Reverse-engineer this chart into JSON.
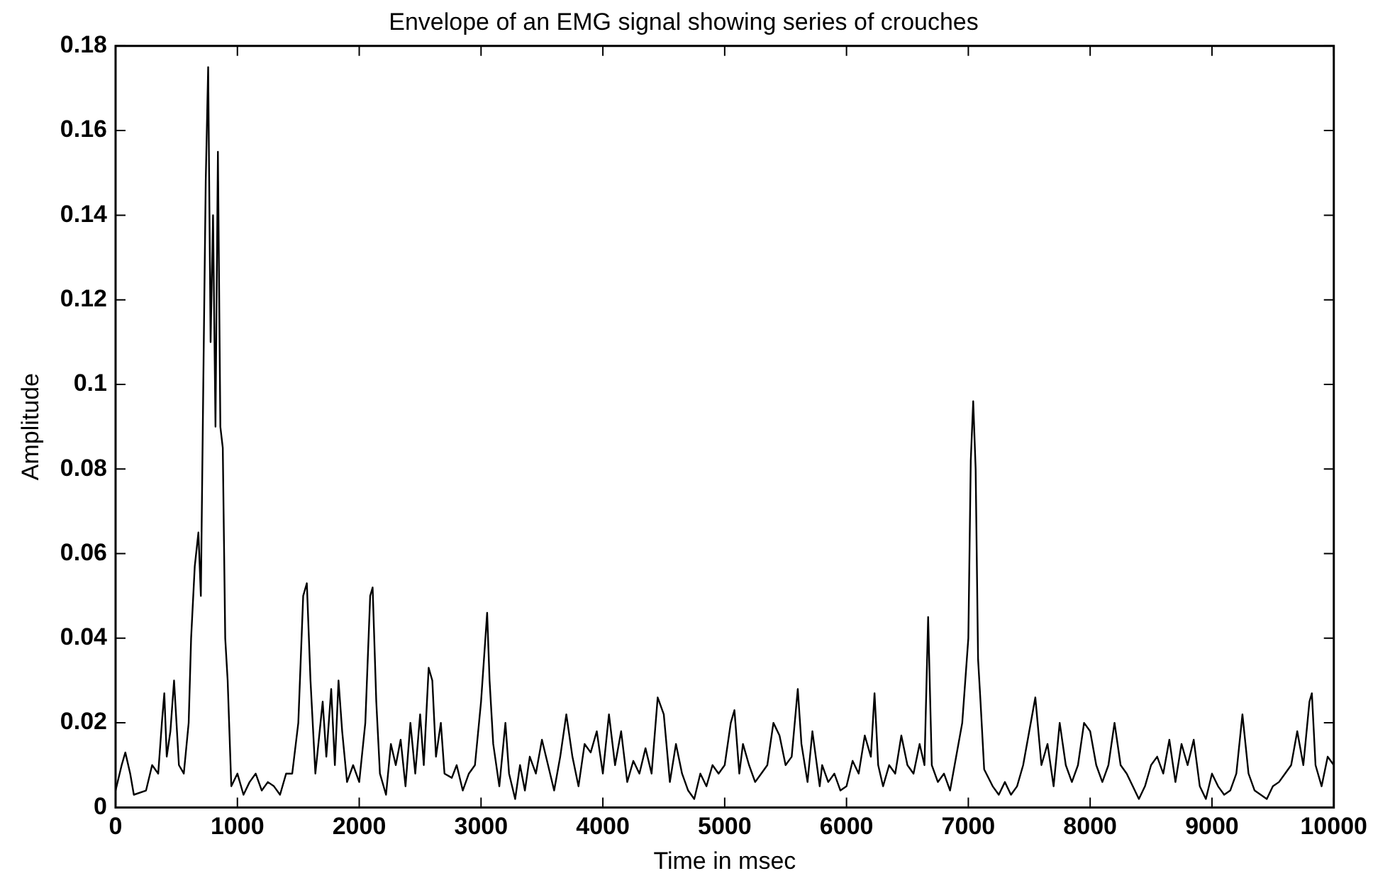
{
  "chart_data": {
    "type": "line",
    "title": "Envelope of an EMG signal showing series of crouches",
    "xlabel": "Time in msec",
    "ylabel": "Amplitude",
    "xlim": [
      0,
      10000
    ],
    "xticks": [
      0,
      1000,
      2000,
      3000,
      4000,
      5000,
      6000,
      7000,
      8000,
      9000,
      10000
    ],
    "ylim": [
      0,
      0.18
    ],
    "yticks": [
      0,
      0.02,
      0.04,
      0.06,
      0.08,
      0.1,
      0.12,
      0.14,
      0.16,
      0.18
    ],
    "grid": false,
    "legend": false,
    "marker": "none",
    "line_style": "solid",
    "series": [
      {
        "color": "#000000",
        "x": [
          0,
          50,
          80,
          120,
          150,
          250,
          300,
          350,
          380,
          400,
          420,
          450,
          480,
          520,
          560,
          600,
          620,
          650,
          680,
          700,
          720,
          740,
          760,
          780,
          800,
          820,
          840,
          860,
          880,
          900,
          920,
          950,
          1000,
          1050,
          1100,
          1150,
          1200,
          1250,
          1300,
          1350,
          1400,
          1450,
          1500,
          1540,
          1570,
          1600,
          1640,
          1700,
          1730,
          1770,
          1800,
          1830,
          1860,
          1900,
          1950,
          2000,
          2050,
          2090,
          2110,
          2140,
          2170,
          2220,
          2260,
          2300,
          2340,
          2380,
          2420,
          2460,
          2500,
          2530,
          2570,
          2600,
          2630,
          2670,
          2700,
          2760,
          2800,
          2850,
          2900,
          2950,
          3000,
          3050,
          3070,
          3100,
          3150,
          3200,
          3230,
          3280,
          3320,
          3360,
          3400,
          3450,
          3500,
          3550,
          3600,
          3650,
          3700,
          3750,
          3800,
          3850,
          3900,
          3950,
          4000,
          4050,
          4100,
          4150,
          4200,
          4250,
          4300,
          4350,
          4400,
          4450,
          4500,
          4550,
          4600,
          4650,
          4700,
          4750,
          4800,
          4850,
          4900,
          4950,
          5000,
          5050,
          5080,
          5120,
          5150,
          5200,
          5250,
          5300,
          5350,
          5400,
          5450,
          5500,
          5550,
          5600,
          5630,
          5680,
          5720,
          5780,
          5800,
          5850,
          5900,
          5950,
          6000,
          6050,
          6100,
          6150,
          6200,
          6230,
          6260,
          6300,
          6350,
          6400,
          6450,
          6500,
          6550,
          6600,
          6640,
          6670,
          6700,
          6750,
          6800,
          6850,
          6900,
          6950,
          7000,
          7020,
          7040,
          7060,
          7080,
          7100,
          7130,
          7200,
          7250,
          7300,
          7350,
          7400,
          7450,
          7500,
          7550,
          7600,
          7650,
          7700,
          7750,
          7800,
          7850,
          7900,
          7950,
          8000,
          8050,
          8100,
          8150,
          8200,
          8250,
          8300,
          8350,
          8400,
          8450,
          8500,
          8550,
          8600,
          8650,
          8700,
          8750,
          8800,
          8850,
          8900,
          8950,
          9000,
          9050,
          9100,
          9150,
          9200,
          9250,
          9300,
          9350,
          9400,
          9450,
          9500,
          9550,
          9600,
          9650,
          9700,
          9750,
          9800,
          9820,
          9850,
          9900,
          9950,
          10000
        ],
        "values": [
          0.004,
          0.01,
          0.013,
          0.008,
          0.003,
          0.004,
          0.01,
          0.008,
          0.02,
          0.027,
          0.012,
          0.018,
          0.03,
          0.01,
          0.008,
          0.02,
          0.04,
          0.057,
          0.065,
          0.05,
          0.1,
          0.148,
          0.175,
          0.11,
          0.14,
          0.09,
          0.155,
          0.09,
          0.085,
          0.04,
          0.03,
          0.005,
          0.008,
          0.003,
          0.006,
          0.008,
          0.004,
          0.006,
          0.005,
          0.003,
          0.008,
          0.008,
          0.02,
          0.05,
          0.053,
          0.03,
          0.008,
          0.025,
          0.012,
          0.028,
          0.01,
          0.03,
          0.018,
          0.006,
          0.01,
          0.006,
          0.02,
          0.05,
          0.052,
          0.025,
          0.008,
          0.003,
          0.015,
          0.01,
          0.016,
          0.005,
          0.02,
          0.008,
          0.022,
          0.01,
          0.033,
          0.03,
          0.012,
          0.02,
          0.008,
          0.007,
          0.01,
          0.004,
          0.008,
          0.01,
          0.025,
          0.046,
          0.03,
          0.015,
          0.005,
          0.02,
          0.008,
          0.002,
          0.01,
          0.004,
          0.012,
          0.008,
          0.016,
          0.01,
          0.004,
          0.012,
          0.022,
          0.012,
          0.005,
          0.015,
          0.013,
          0.018,
          0.008,
          0.022,
          0.01,
          0.018,
          0.006,
          0.011,
          0.008,
          0.014,
          0.008,
          0.026,
          0.022,
          0.006,
          0.015,
          0.008,
          0.004,
          0.002,
          0.008,
          0.005,
          0.01,
          0.008,
          0.01,
          0.02,
          0.023,
          0.008,
          0.015,
          0.01,
          0.006,
          0.008,
          0.01,
          0.02,
          0.017,
          0.01,
          0.012,
          0.028,
          0.015,
          0.006,
          0.018,
          0.005,
          0.01,
          0.006,
          0.008,
          0.004,
          0.005,
          0.011,
          0.008,
          0.017,
          0.012,
          0.027,
          0.01,
          0.005,
          0.01,
          0.008,
          0.017,
          0.01,
          0.008,
          0.015,
          0.01,
          0.045,
          0.01,
          0.006,
          0.008,
          0.004,
          0.012,
          0.02,
          0.04,
          0.082,
          0.096,
          0.08,
          0.035,
          0.025,
          0.009,
          0.005,
          0.003,
          0.006,
          0.003,
          0.005,
          0.01,
          0.018,
          0.026,
          0.01,
          0.015,
          0.005,
          0.02,
          0.01,
          0.006,
          0.01,
          0.02,
          0.018,
          0.01,
          0.006,
          0.01,
          0.02,
          0.01,
          0.008,
          0.005,
          0.002,
          0.005,
          0.01,
          0.012,
          0.008,
          0.016,
          0.006,
          0.015,
          0.01,
          0.016,
          0.005,
          0.002,
          0.008,
          0.005,
          0.003,
          0.004,
          0.008,
          0.022,
          0.008,
          0.004,
          0.003,
          0.002,
          0.005,
          0.006,
          0.008,
          0.01,
          0.018,
          0.01,
          0.025,
          0.027,
          0.01,
          0.005,
          0.012,
          0.01
        ]
      }
    ]
  }
}
